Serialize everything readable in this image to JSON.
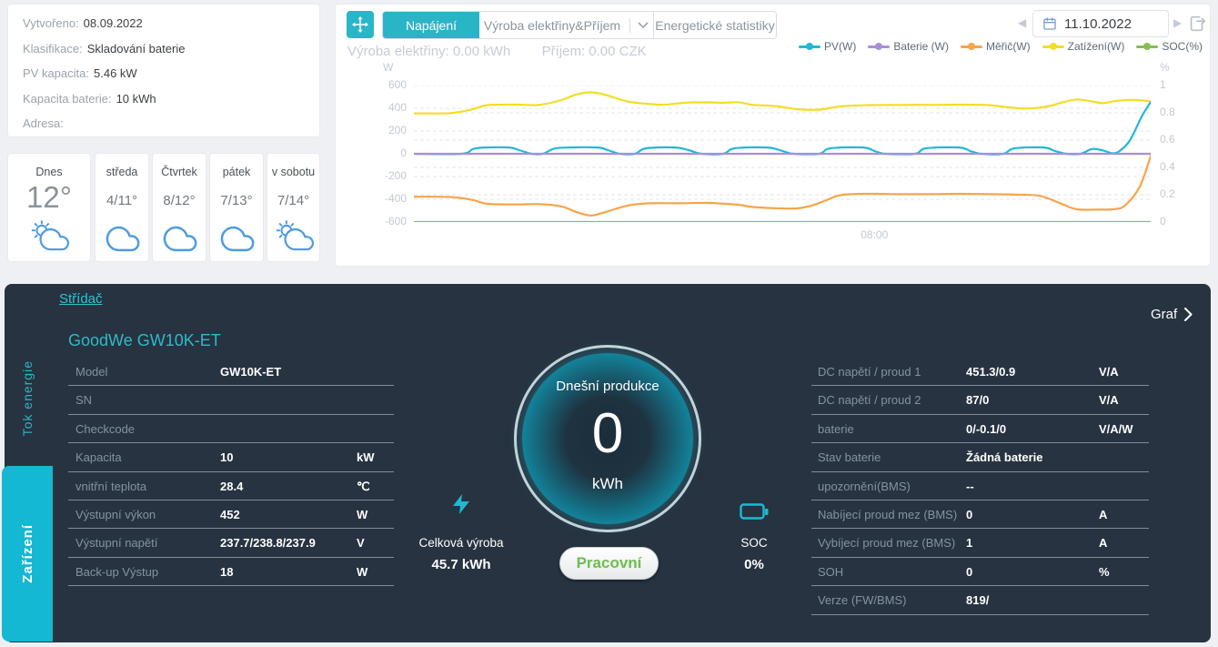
{
  "info_card": {
    "rows": [
      {
        "label": "Vytvořeno:",
        "value": "08.09.2022"
      },
      {
        "label": "Klasifikace:",
        "value": "Skladování baterie"
      },
      {
        "label": "PV kapacita:",
        "value": "5.46 kW"
      },
      {
        "label": "Kapacita baterie:",
        "value": "10 kWh"
      },
      {
        "label": "Adresa:",
        "value": ""
      }
    ]
  },
  "weather": {
    "days": [
      {
        "name": "Dnes",
        "temp": "12°",
        "icon": "sun-cloud"
      },
      {
        "name": "středa",
        "temp": "4/11°",
        "icon": "cloud"
      },
      {
        "name": "Čtvrtek",
        "temp": "8/12°",
        "icon": "cloud"
      },
      {
        "name": "pátek",
        "temp": "7/13°",
        "icon": "cloud"
      },
      {
        "name": "v sobotu",
        "temp": "7/14°",
        "icon": "sun-cloud"
      }
    ],
    "icon_color": "#4e9be0"
  },
  "chart_panel": {
    "tabs": [
      {
        "label": "Napájení",
        "active": true
      },
      {
        "label": "Výroba elektřiny&Příjem",
        "active": false,
        "has_dropdown": true
      },
      {
        "label": "Energetické statistiky",
        "active": false
      }
    ],
    "subtitle": {
      "production_label": "Výroba elektřiny:",
      "production_value": "0.00 kWh",
      "income_label": "Příjem:",
      "income_value": "0.00 CZK"
    },
    "date_picker": {
      "value": "11.10.2022"
    },
    "accent_color": "#28b6c8"
  },
  "chart_data": {
    "type": "line",
    "x_axis": {
      "visible_tick": "08:00",
      "tick_fraction": 0.625
    },
    "y_left": {
      "label": "W",
      "range": [
        -600,
        600
      ],
      "ticks": [
        600,
        400,
        200,
        0,
        -200,
        -400,
        -600
      ]
    },
    "y_right": {
      "label": "%",
      "range": [
        0,
        1
      ],
      "ticks": [
        1,
        0.8,
        0.6,
        0.4,
        0.2,
        0
      ]
    },
    "grid_minor_w": [
      360,
      120,
      -120,
      -360
    ],
    "legend_position": "top-right",
    "series": [
      {
        "name": "SOC(%)",
        "color": "#86bf54",
        "axis": "right",
        "points": [
          [
            0,
            0
          ],
          [
            1,
            0
          ]
        ]
      },
      {
        "name": "Zatížení(W)",
        "color": "#f2de25",
        "axis": "left",
        "points": [
          [
            0,
            355
          ],
          [
            0.05,
            358
          ],
          [
            0.08,
            392
          ],
          [
            0.1,
            428
          ],
          [
            0.14,
            432
          ],
          [
            0.17,
            430
          ],
          [
            0.2,
            472
          ],
          [
            0.22,
            520
          ],
          [
            0.24,
            540
          ],
          [
            0.26,
            518
          ],
          [
            0.29,
            460
          ],
          [
            0.32,
            438
          ],
          [
            0.34,
            432
          ],
          [
            0.37,
            450
          ],
          [
            0.4,
            452
          ],
          [
            0.42,
            448
          ],
          [
            0.44,
            453
          ],
          [
            0.46,
            430
          ],
          [
            0.49,
            420
          ],
          [
            0.52,
            392
          ],
          [
            0.55,
            388
          ],
          [
            0.58,
            418
          ],
          [
            0.62,
            428
          ],
          [
            0.66,
            430
          ],
          [
            0.7,
            430
          ],
          [
            0.74,
            432
          ],
          [
            0.78,
            428
          ],
          [
            0.8,
            414
          ],
          [
            0.83,
            398
          ],
          [
            0.86,
            416
          ],
          [
            0.88,
            452
          ],
          [
            0.9,
            478
          ],
          [
            0.92,
            460
          ],
          [
            0.935,
            445
          ],
          [
            0.95,
            462
          ],
          [
            0.97,
            474
          ],
          [
            0.99,
            468
          ],
          [
            1,
            460
          ]
        ]
      },
      {
        "name": "Měřič(W)",
        "color": "#f7a44a",
        "axis": "left",
        "points": [
          [
            0,
            -378
          ],
          [
            0.05,
            -380
          ],
          [
            0.08,
            -406
          ],
          [
            0.1,
            -440
          ],
          [
            0.14,
            -445
          ],
          [
            0.17,
            -442
          ],
          [
            0.2,
            -462
          ],
          [
            0.22,
            -510
          ],
          [
            0.24,
            -542
          ],
          [
            0.26,
            -512
          ],
          [
            0.29,
            -455
          ],
          [
            0.32,
            -435
          ],
          [
            0.36,
            -435
          ],
          [
            0.4,
            -432
          ],
          [
            0.44,
            -448
          ],
          [
            0.46,
            -468
          ],
          [
            0.49,
            -478
          ],
          [
            0.52,
            -480
          ],
          [
            0.54,
            -455
          ],
          [
            0.56,
            -408
          ],
          [
            0.58,
            -362
          ],
          [
            0.62,
            -352
          ],
          [
            0.66,
            -355
          ],
          [
            0.7,
            -355
          ],
          [
            0.74,
            -352
          ],
          [
            0.78,
            -355
          ],
          [
            0.82,
            -360
          ],
          [
            0.85,
            -370
          ],
          [
            0.88,
            -442
          ],
          [
            0.9,
            -488
          ],
          [
            0.93,
            -490
          ],
          [
            0.95,
            -487
          ],
          [
            0.965,
            -455
          ],
          [
            0.985,
            -290
          ],
          [
            1,
            -20
          ]
        ]
      },
      {
        "name": "PV(W)",
        "color": "#22b8d4",
        "axis": "left",
        "points": [
          [
            0,
            0
          ],
          [
            0.065,
            0
          ],
          [
            0.08,
            42
          ],
          [
            0.095,
            55
          ],
          [
            0.13,
            55
          ],
          [
            0.145,
            28
          ],
          [
            0.16,
            0
          ],
          [
            0.175,
            0
          ],
          [
            0.19,
            45
          ],
          [
            0.21,
            55
          ],
          [
            0.25,
            55
          ],
          [
            0.265,
            28
          ],
          [
            0.28,
            0
          ],
          [
            0.3,
            0
          ],
          [
            0.315,
            48
          ],
          [
            0.355,
            55
          ],
          [
            0.375,
            28
          ],
          [
            0.39,
            0
          ],
          [
            0.42,
            0
          ],
          [
            0.435,
            48
          ],
          [
            0.48,
            55
          ],
          [
            0.5,
            25
          ],
          [
            0.515,
            0
          ],
          [
            0.55,
            0
          ],
          [
            0.565,
            48
          ],
          [
            0.61,
            55
          ],
          [
            0.625,
            25
          ],
          [
            0.64,
            0
          ],
          [
            0.68,
            0
          ],
          [
            0.695,
            48
          ],
          [
            0.74,
            55
          ],
          [
            0.755,
            25
          ],
          [
            0.77,
            0
          ],
          [
            0.8,
            0
          ],
          [
            0.815,
            48
          ],
          [
            0.855,
            55
          ],
          [
            0.87,
            25
          ],
          [
            0.885,
            0
          ],
          [
            0.905,
            0
          ],
          [
            0.92,
            42
          ],
          [
            0.935,
            30
          ],
          [
            0.948,
            5
          ],
          [
            0.958,
            25
          ],
          [
            0.972,
            120
          ],
          [
            0.988,
            330
          ],
          [
            1,
            455
          ]
        ]
      },
      {
        "name": "Baterie (W)",
        "color": "#a78edd",
        "axis": "left",
        "points": [
          [
            0,
            0
          ],
          [
            1,
            0
          ]
        ]
      }
    ],
    "legend_order": [
      "PV(W)",
      "Baterie (W)",
      "Měřič(W)",
      "Zatížení(W)",
      "SOC(%)"
    ]
  },
  "device_panel": {
    "tab_label": "Střídač",
    "graf_label": "Graf",
    "title": "GoodWe GW10K-ET",
    "sidebar": [
      {
        "label": "Tok energie",
        "active": false
      },
      {
        "label": "Zařízení",
        "active": true
      }
    ],
    "left_table": [
      {
        "label": "Model",
        "value": "GW10K-ET",
        "unit": ""
      },
      {
        "label": "SN",
        "value": "",
        "unit": ""
      },
      {
        "label": "Checkcode",
        "value": "",
        "unit": ""
      },
      {
        "label": "Kapacita",
        "value": "10",
        "unit": "kW"
      },
      {
        "label": "vnitřní teplota",
        "value": "28.4",
        "unit": "℃"
      },
      {
        "label": "Výstupní výkon",
        "value": "452",
        "unit": "W"
      },
      {
        "label": "Výstupní napětí",
        "value": "237.7/238.8/237.9",
        "unit": "V"
      },
      {
        "label": "Back-up Výstup",
        "value": "18",
        "unit": "W"
      }
    ],
    "right_table": [
      {
        "label": "DC napětí / proud 1",
        "value": "451.3/0.9",
        "unit": "V/A"
      },
      {
        "label": "DC napětí / proud 2",
        "value": "87/0",
        "unit": "V/A"
      },
      {
        "label": "baterie",
        "value": "0/-0.1/0",
        "unit": "V/A/W"
      },
      {
        "label": "Stav baterie",
        "value": "Žádná baterie",
        "unit": ""
      },
      {
        "label": "upozornění(BMS)",
        "value": "--",
        "unit": ""
      },
      {
        "label": "Nabíjecí proud mez (BMS)",
        "value": "0",
        "unit": "A"
      },
      {
        "label": "Vybíjecí proud mez (BMS)",
        "value": "1",
        "unit": "A"
      },
      {
        "label": "SOH",
        "value": "0",
        "unit": "%"
      },
      {
        "label": "Verze (FW/BMS)",
        "value": "819/",
        "unit": ""
      }
    ],
    "gauge": {
      "title": "Dnešní produkce",
      "value": "0",
      "unit": "kWh"
    },
    "status_button": "Pracovní",
    "total_production": {
      "label": "Celková výroba",
      "value": "45.7 kWh"
    },
    "soc": {
      "label": "SOC",
      "value": "0%"
    }
  }
}
